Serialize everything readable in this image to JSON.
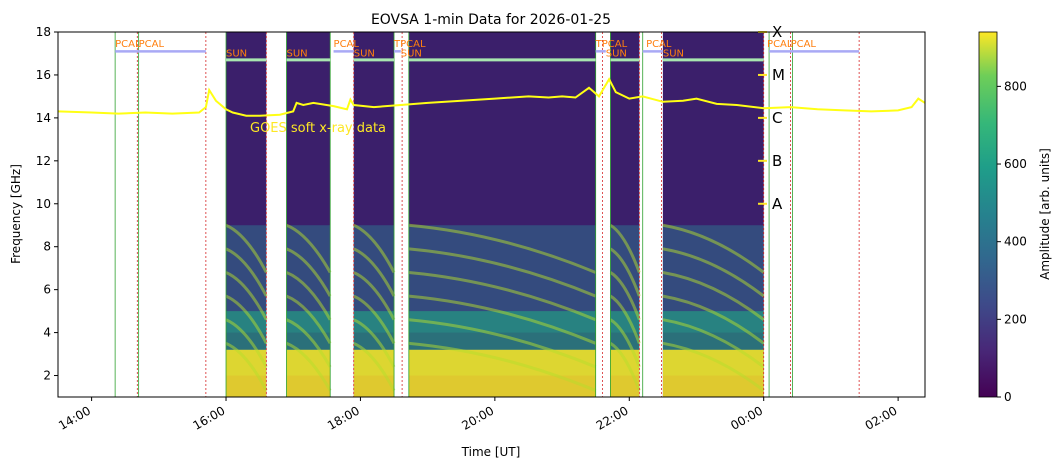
{
  "chart_data": {
    "type": "heatmap",
    "title": "EOVSA 1-min Data for 2026-01-25",
    "xlabel": "Time [UT]",
    "ylabel": "Frequency [GHz]",
    "colorbar_label": "Amplitude [arb. units]",
    "colormap": "viridis",
    "xlim_hours": [
      13.5,
      26.4
    ],
    "ylim": [
      1.0,
      18.0
    ],
    "clim": [
      0,
      940
    ],
    "x_ticks": [
      {
        "hour": 14,
        "label": "14:00"
      },
      {
        "hour": 16,
        "label": "16:00"
      },
      {
        "hour": 18,
        "label": "18:00"
      },
      {
        "hour": 20,
        "label": "20:00"
      },
      {
        "hour": 22,
        "label": "22:00"
      },
      {
        "hour": 24,
        "label": "00:00"
      },
      {
        "hour": 26,
        "label": "02:00"
      }
    ],
    "y_ticks": [
      2,
      4,
      6,
      8,
      10,
      12,
      14,
      16,
      18
    ],
    "colorbar_ticks": [
      0,
      200,
      400,
      600,
      800
    ],
    "goes_label": "GOES soft x-ray data",
    "goes_class_labels": [
      {
        "label": "A",
        "freq": 10.0
      },
      {
        "label": "B",
        "freq": 12.0
      },
      {
        "label": "C",
        "freq": 14.0
      },
      {
        "label": "M",
        "freq": 16.0
      },
      {
        "label": "X",
        "freq": 18.0
      }
    ],
    "goes_curve": {
      "hour": [
        13.5,
        14.0,
        14.4,
        14.8,
        15.2,
        15.6,
        15.7,
        15.75,
        15.85,
        16.0,
        16.1,
        16.3,
        16.5,
        16.8,
        17.0,
        17.05,
        17.15,
        17.3,
        17.6,
        17.8,
        17.85,
        17.9,
        18.2,
        18.6,
        19.0,
        19.5,
        20.0,
        20.5,
        20.8,
        21.0,
        21.2,
        21.4,
        21.55,
        21.7,
        21.8,
        22.0,
        22.2,
        22.5,
        22.8,
        23.0,
        23.3,
        23.6,
        24.0,
        24.4,
        24.8,
        25.2,
        25.6,
        26.0,
        26.2,
        26.3,
        26.4
      ],
      "freq": [
        14.3,
        14.25,
        14.2,
        14.25,
        14.2,
        14.25,
        14.5,
        15.3,
        14.8,
        14.4,
        14.25,
        14.1,
        14.1,
        14.15,
        14.3,
        14.7,
        14.6,
        14.7,
        14.55,
        14.4,
        14.85,
        14.6,
        14.5,
        14.6,
        14.7,
        14.8,
        14.9,
        15.0,
        14.95,
        15.0,
        14.95,
        15.4,
        15.0,
        15.8,
        15.2,
        14.9,
        15.0,
        14.75,
        14.8,
        14.9,
        14.65,
        14.6,
        14.45,
        14.5,
        14.4,
        14.35,
        14.3,
        14.35,
        14.5,
        14.9,
        14.7
      ]
    },
    "data_blocks": [
      {
        "start_hour": 16.0,
        "end_hour": 16.6,
        "type": "SUN"
      },
      {
        "start_hour": 16.9,
        "end_hour": 17.55,
        "type": "SUN"
      },
      {
        "start_hour": 17.9,
        "end_hour": 18.5,
        "type": "SUN"
      },
      {
        "start_hour": 18.72,
        "end_hour": 21.5,
        "type": "SUN"
      },
      {
        "start_hour": 21.72,
        "end_hour": 22.15,
        "type": "SUN"
      },
      {
        "start_hour": 22.5,
        "end_hour": 24.0,
        "type": "SUN"
      }
    ],
    "scan_labels": [
      {
        "label": "PCAL",
        "hour": 14.35,
        "row": "upper"
      },
      {
        "label": "PCAL",
        "hour": 14.7,
        "row": "upper"
      },
      {
        "label": "SUN",
        "hour": 16.0,
        "row": "lower"
      },
      {
        "label": "SUN",
        "hour": 16.9,
        "row": "lower"
      },
      {
        "label": "PCAL",
        "hour": 17.6,
        "row": "upper"
      },
      {
        "label": "SUN",
        "hour": 17.9,
        "row": "lower"
      },
      {
        "label": "TPCAL",
        "hour": 18.5,
        "row": "upper"
      },
      {
        "label": "SUN",
        "hour": 18.6,
        "row": "lower"
      },
      {
        "label": "TPCAL",
        "hour": 21.5,
        "row": "upper"
      },
      {
        "label": "SUN",
        "hour": 21.65,
        "row": "lower"
      },
      {
        "label": "PCAL",
        "hour": 22.25,
        "row": "upper"
      },
      {
        "label": "SUN",
        "hour": 22.5,
        "row": "lower"
      },
      {
        "label": "PCAL",
        "hour": 24.05,
        "row": "upper"
      },
      {
        "label": "PCAL",
        "hour": 24.4,
        "row": "upper"
      }
    ],
    "green_lines": [
      14.35,
      14.7,
      16.0,
      16.9,
      17.55,
      18.5,
      18.72,
      21.5,
      21.72,
      22.2,
      24.08,
      24.43
    ],
    "red_dashed_lines": [
      14.68,
      15.7,
      16.6,
      17.9,
      18.62,
      21.6,
      22.15,
      22.48,
      24.0,
      24.4,
      25.42
    ],
    "sun_bars": [
      [
        16.0,
        16.6
      ],
      [
        16.9,
        17.55
      ],
      [
        17.9,
        18.5
      ],
      [
        18.72,
        21.5
      ],
      [
        21.72,
        22.15
      ],
      [
        22.5,
        24.0
      ]
    ],
    "pcal_bars": [
      [
        14.35,
        15.7
      ],
      [
        17.6,
        17.9
      ],
      [
        18.5,
        18.6
      ],
      [
        21.5,
        21.65
      ],
      [
        22.2,
        22.5
      ],
      [
        24.08,
        25.42
      ]
    ]
  }
}
